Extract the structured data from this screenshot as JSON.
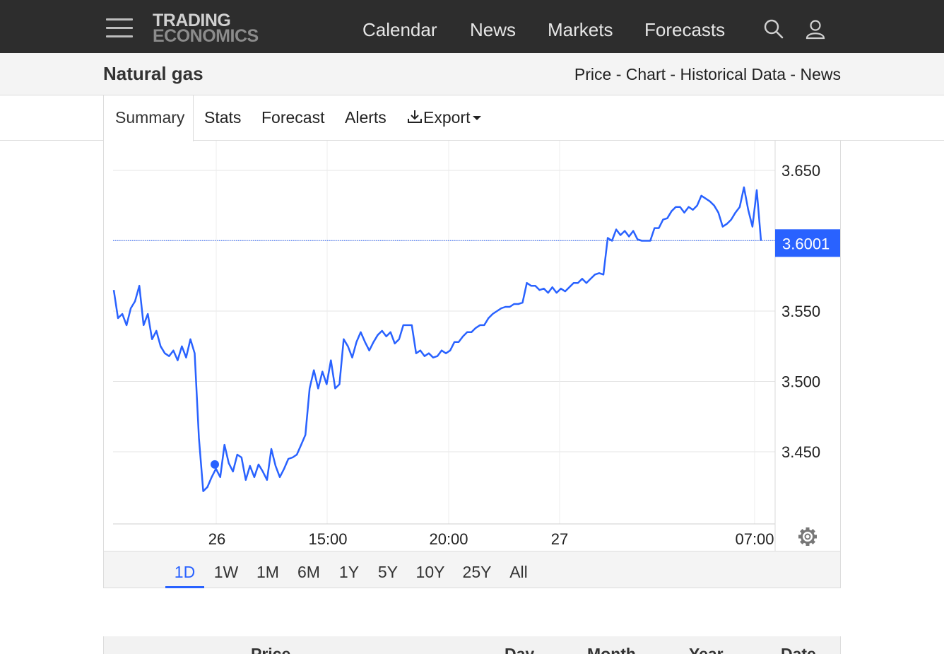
{
  "logo": {
    "line1": "TRADING",
    "line2": "ECONOMICS"
  },
  "nav": [
    {
      "label": "Calendar"
    },
    {
      "label": "News"
    },
    {
      "label": "Markets"
    },
    {
      "label": "Forecasts"
    }
  ],
  "header": {
    "title": "Natural gas",
    "links": [
      "Price",
      "Chart",
      "Historical Data",
      "News"
    ],
    "separator": " - "
  },
  "tabs": [
    {
      "label": "Summary",
      "active": true
    },
    {
      "label": "Stats"
    },
    {
      "label": "Forecast"
    },
    {
      "label": "Alerts"
    },
    {
      "label": "Export"
    }
  ],
  "ranges": [
    {
      "label": "1D",
      "active": true
    },
    {
      "label": "1W"
    },
    {
      "label": "1M"
    },
    {
      "label": "6M"
    },
    {
      "label": "1Y"
    },
    {
      "label": "5Y"
    },
    {
      "label": "10Y"
    },
    {
      "label": "25Y"
    },
    {
      "label": "All"
    }
  ],
  "table_headers": [
    "Price",
    "Day",
    "Month",
    "Year",
    "Date"
  ],
  "colors": {
    "accent": "#2962ff",
    "topbar": "#2d2d2d",
    "line": "#2962ff"
  },
  "chart_data": {
    "type": "line",
    "title": "",
    "xlabel": "",
    "ylabel": "",
    "ylim": [
      3.4,
      3.68
    ],
    "y_ticks": [
      3.45,
      3.5,
      3.55,
      3.65
    ],
    "y_tick_labels": [
      "3.450",
      "3.500",
      "3.550",
      "3.650"
    ],
    "x_tick_labels": [
      "26",
      "15:00",
      "20:00",
      "27",
      "07:00"
    ],
    "last_price": 3.6001,
    "last_price_label": "3.6001",
    "grid": true,
    "series": [
      {
        "name": "",
        "values": [
          3.565,
          3.545,
          3.548,
          3.54,
          3.552,
          3.557,
          3.568,
          3.54,
          3.548,
          3.53,
          3.536,
          3.525,
          3.52,
          3.518,
          3.522,
          3.515,
          3.525,
          3.517,
          3.53,
          3.52,
          3.46,
          3.422,
          3.425,
          3.432,
          3.438,
          3.432,
          3.455,
          3.442,
          3.436,
          3.448,
          3.446,
          3.43,
          3.44,
          3.432,
          3.441,
          3.436,
          3.43,
          3.452,
          3.44,
          3.432,
          3.438,
          3.445,
          3.446,
          3.448,
          3.455,
          3.462,
          3.495,
          3.508,
          3.495,
          3.507,
          3.498,
          3.515,
          3.495,
          3.498,
          3.53,
          3.525,
          3.517,
          3.528,
          3.535,
          3.528,
          3.522,
          3.528,
          3.533,
          3.536,
          3.532,
          3.535,
          3.527,
          3.53,
          3.54,
          3.54,
          3.54,
          3.52,
          3.522,
          3.518,
          3.52,
          3.517,
          3.518,
          3.522,
          3.52,
          3.522,
          3.528,
          3.528,
          3.532,
          3.535,
          3.535,
          3.538,
          3.54,
          3.54,
          3.545,
          3.548,
          3.55,
          3.552,
          3.553,
          3.553,
          3.555,
          3.555,
          3.556,
          3.57,
          3.568,
          3.568,
          3.565,
          3.566,
          3.563,
          3.567,
          3.563,
          3.566,
          3.564,
          3.567,
          3.57,
          3.57,
          3.573,
          3.57,
          3.573,
          3.576,
          3.577,
          3.576,
          3.602,
          3.6,
          3.608,
          3.604,
          3.607,
          3.603,
          3.607,
          3.601,
          3.6,
          3.6,
          3.6,
          3.609,
          3.609,
          3.615,
          3.616,
          3.621,
          3.624,
          3.624,
          3.62,
          3.624,
          3.622,
          3.625,
          3.632,
          3.63,
          3.628,
          3.625,
          3.62,
          3.61,
          3.612,
          3.615,
          3.62,
          3.624,
          3.638,
          3.622,
          3.61,
          3.636,
          3.6
        ]
      }
    ]
  }
}
